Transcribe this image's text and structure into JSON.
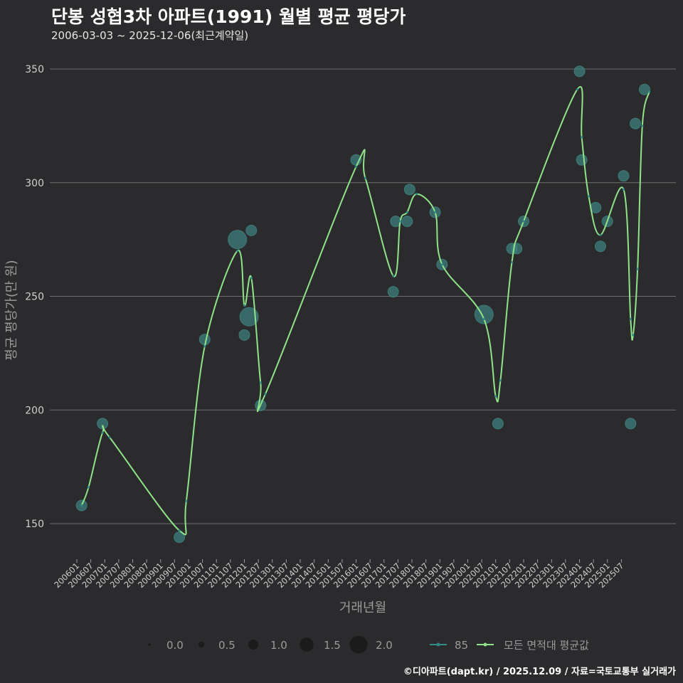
{
  "header": {
    "title": "단봉 성협3차 아파트(1991) 월별 평균 평당가",
    "subtitle": "2006-03-03 ~ 2025-12-06(최근계약일)"
  },
  "footer": {
    "credit": "©디아파트(dapt.kr) / 2025.12.09 / 자료=국토교통부 실거래가"
  },
  "colors": {
    "background": "#2b2b2d",
    "grid": "#6e6e6e",
    "series_85": "#2e8b86",
    "series_avg": "#8fe388",
    "bubble_fill": "#3d7f7c"
  },
  "chart_data": {
    "type": "line",
    "title": "단봉 성협3차 아파트(1991) 월별 평균 평당가",
    "xlabel": "거래년월",
    "ylabel": "평균 평당가(만 원)",
    "ylim": [
      133,
      362
    ],
    "yticks": [
      150,
      200,
      250,
      300,
      350
    ],
    "grid": true,
    "legend_position": "bottom",
    "x_tick_labels": [
      "200601",
      "200607",
      "200701",
      "200707",
      "200801",
      "200807",
      "200901",
      "200907",
      "201001",
      "201007",
      "201101",
      "201107",
      "201201",
      "201207",
      "201301",
      "201307",
      "201401",
      "201407",
      "201501",
      "201507",
      "201601",
      "201607",
      "201701",
      "201707",
      "201801",
      "201807",
      "201901",
      "201907",
      "202001",
      "202007",
      "202101",
      "202107",
      "202201",
      "202207",
      "202301",
      "202307",
      "202401",
      "202407",
      "202501",
      "202507"
    ],
    "size_legend": {
      "title": "",
      "labels": [
        "0.0",
        "0.5",
        "1.0",
        "1.5",
        "2.0"
      ],
      "values": [
        0,
        0.5,
        1.0,
        1.5,
        2.0
      ]
    },
    "series_legend": [
      {
        "name": "85",
        "color": "#2e8b86"
      },
      {
        "name": "모든 면적대 평균값",
        "color": "#8fe388"
      }
    ],
    "series": [
      {
        "name": "85",
        "type": "bubble",
        "points": [
          {
            "x": 2006.17,
            "y": 158,
            "size": 1.0
          },
          {
            "x": 2006.92,
            "y": 194,
            "size": 1.0
          },
          {
            "x": 2009.67,
            "y": 144,
            "size": 1.0
          },
          {
            "x": 2010.58,
            "y": 231,
            "size": 1.0
          },
          {
            "x": 2011.75,
            "y": 275,
            "size": 2.0
          },
          {
            "x": 2012.0,
            "y": 233,
            "size": 1.0
          },
          {
            "x": 2012.17,
            "y": 241,
            "size": 2.0
          },
          {
            "x": 2012.25,
            "y": 279,
            "size": 1.0
          },
          {
            "x": 2012.58,
            "y": 202,
            "size": 1.0
          },
          {
            "x": 2016.0,
            "y": 310,
            "size": 1.0
          },
          {
            "x": 2017.33,
            "y": 252,
            "size": 1.0
          },
          {
            "x": 2017.42,
            "y": 283,
            "size": 1.0
          },
          {
            "x": 2017.83,
            "y": 283,
            "size": 1.0
          },
          {
            "x": 2017.92,
            "y": 297,
            "size": 1.0
          },
          {
            "x": 2018.83,
            "y": 287,
            "size": 1.0
          },
          {
            "x": 2019.08,
            "y": 264,
            "size": 1.0
          },
          {
            "x": 2020.58,
            "y": 242,
            "size": 2.0
          },
          {
            "x": 2021.08,
            "y": 194,
            "size": 1.0
          },
          {
            "x": 2021.58,
            "y": 271,
            "size": 1.0
          },
          {
            "x": 2021.75,
            "y": 271,
            "size": 1.0
          },
          {
            "x": 2022.0,
            "y": 283,
            "size": 1.0
          },
          {
            "x": 2024.0,
            "y": 349,
            "size": 1.0
          },
          {
            "x": 2024.08,
            "y": 310,
            "size": 1.0
          },
          {
            "x": 2024.58,
            "y": 289,
            "size": 1.0
          },
          {
            "x": 2024.75,
            "y": 272,
            "size": 1.0
          },
          {
            "x": 2025.0,
            "y": 283,
            "size": 1.0
          },
          {
            "x": 2025.58,
            "y": 303,
            "size": 1.0
          },
          {
            "x": 2025.83,
            "y": 194,
            "size": 1.0
          },
          {
            "x": 2026.0,
            "y": 326,
            "size": 1.0
          },
          {
            "x": 2026.33,
            "y": 341,
            "size": 1.0
          }
        ]
      },
      {
        "name": "모든 면적대 평균값",
        "type": "line",
        "points": [
          {
            "x": 2006.17,
            "y": 158
          },
          {
            "x": 2006.42,
            "y": 166
          },
          {
            "x": 2006.92,
            "y": 190
          },
          {
            "x": 2007.17,
            "y": 188
          },
          {
            "x": 2009.67,
            "y": 147
          },
          {
            "x": 2009.92,
            "y": 160
          },
          {
            "x": 2010.58,
            "y": 228
          },
          {
            "x": 2011.75,
            "y": 270
          },
          {
            "x": 2012.0,
            "y": 246
          },
          {
            "x": 2012.25,
            "y": 258
          },
          {
            "x": 2012.58,
            "y": 212
          },
          {
            "x": 2012.75,
            "y": 207
          },
          {
            "x": 2016.0,
            "y": 307
          },
          {
            "x": 2016.33,
            "y": 302
          },
          {
            "x": 2017.33,
            "y": 259
          },
          {
            "x": 2017.58,
            "y": 283
          },
          {
            "x": 2017.83,
            "y": 287
          },
          {
            "x": 2018.17,
            "y": 295
          },
          {
            "x": 2018.83,
            "y": 287
          },
          {
            "x": 2019.08,
            "y": 264
          },
          {
            "x": 2020.58,
            "y": 240
          },
          {
            "x": 2021.0,
            "y": 206
          },
          {
            "x": 2021.17,
            "y": 213
          },
          {
            "x": 2021.58,
            "y": 265
          },
          {
            "x": 2022.0,
            "y": 283
          },
          {
            "x": 2023.92,
            "y": 341
          },
          {
            "x": 2024.08,
            "y": 320
          },
          {
            "x": 2024.33,
            "y": 294
          },
          {
            "x": 2024.75,
            "y": 277
          },
          {
            "x": 2025.58,
            "y": 297
          },
          {
            "x": 2025.83,
            "y": 240
          },
          {
            "x": 2025.92,
            "y": 233
          },
          {
            "x": 2026.08,
            "y": 262
          },
          {
            "x": 2026.25,
            "y": 325
          },
          {
            "x": 2026.5,
            "y": 340
          }
        ]
      }
    ]
  }
}
